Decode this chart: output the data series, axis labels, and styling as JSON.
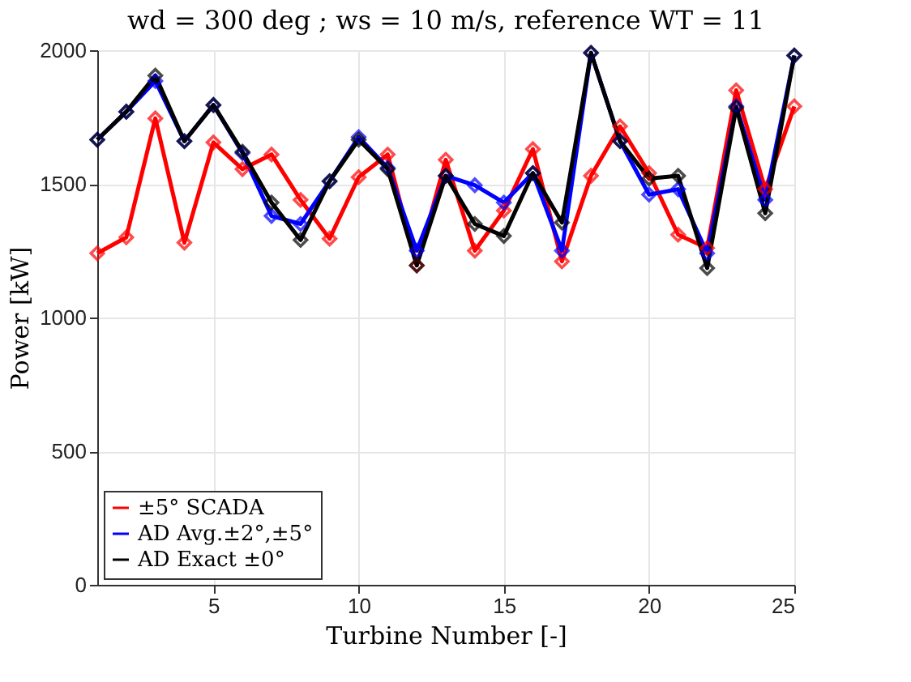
{
  "chart_data": {
    "type": "line",
    "title": "wd = 300 deg ; ws = 10 m/s, reference WT = 11",
    "xlabel": "Turbine Number [-]",
    "ylabel": "Power [kW]",
    "x": [
      1,
      2,
      3,
      4,
      5,
      6,
      7,
      8,
      9,
      10,
      11,
      12,
      13,
      14,
      15,
      16,
      17,
      18,
      19,
      20,
      21,
      22,
      23,
      24,
      25
    ],
    "series": [
      {
        "name": "±5° SCADA",
        "color": "#ff0000",
        "values": [
          1240,
          1300,
          1745,
          1280,
          1655,
          1555,
          1610,
          1440,
          1295,
          1525,
          1610,
          1195,
          1590,
          1250,
          1400,
          1630,
          1210,
          1530,
          1715,
          1540,
          1310,
          1260,
          1850,
          1480,
          1790
        ]
      },
      {
        "name": "AD Avg.±2°,±5°",
        "color": "#0000ff",
        "values": [
          1665,
          1770,
          1885,
          1660,
          1795,
          1615,
          1380,
          1350,
          1510,
          1675,
          1560,
          1250,
          1530,
          1495,
          1430,
          1540,
          1250,
          1990,
          1660,
          1460,
          1480,
          1240,
          1790,
          1440,
          1980
        ]
      },
      {
        "name": "AD Exact ±0°",
        "color": "#000000",
        "values": [
          1665,
          1770,
          1905,
          1660,
          1795,
          1620,
          1430,
          1290,
          1510,
          1665,
          1555,
          1195,
          1530,
          1350,
          1305,
          1540,
          1355,
          1990,
          1660,
          1520,
          1530,
          1185,
          1785,
          1390,
          1980
        ]
      }
    ],
    "xlim": [
      1,
      25
    ],
    "xticks": [
      5,
      10,
      15,
      20,
      25
    ],
    "ylim": [
      0,
      2000
    ],
    "yticks": [
      0,
      500,
      1000,
      1500,
      2000
    ],
    "grid": true,
    "legend": "bottom left",
    "marker": "diamond",
    "line_style": "solid"
  }
}
